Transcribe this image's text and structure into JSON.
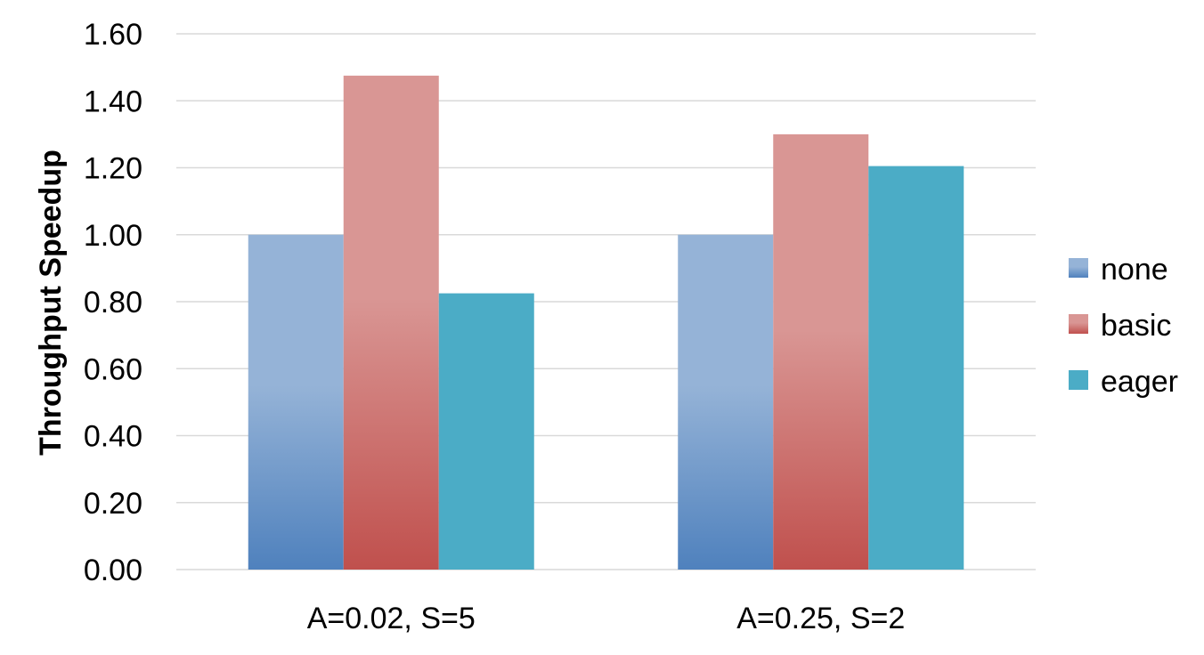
{
  "chart_data": {
    "type": "bar",
    "title": "",
    "xlabel": "",
    "ylabel": "Throughput Speedup",
    "categories": [
      "A=0.02, S=5",
      "A=0.25, S=2"
    ],
    "series": [
      {
        "name": "none",
        "values": [
          1.0,
          1.0
        ],
        "color_top": "#95b3d7",
        "color_bottom": "#4f81bd"
      },
      {
        "name": "basic",
        "values": [
          1.475,
          1.3
        ],
        "color_top": "#d99694",
        "color_bottom": "#c0504d"
      },
      {
        "name": "eager",
        "values": [
          0.825,
          1.205
        ],
        "color_top": "#4bacc6",
        "color_bottom": "#4bacc6"
      }
    ],
    "ylim": [
      0,
      1.6
    ],
    "yticks": [
      "0.00",
      "0.20",
      "0.40",
      "0.60",
      "0.80",
      "1.00",
      "1.20",
      "1.40",
      "1.60"
    ],
    "grid": true,
    "legend_position": "right"
  }
}
